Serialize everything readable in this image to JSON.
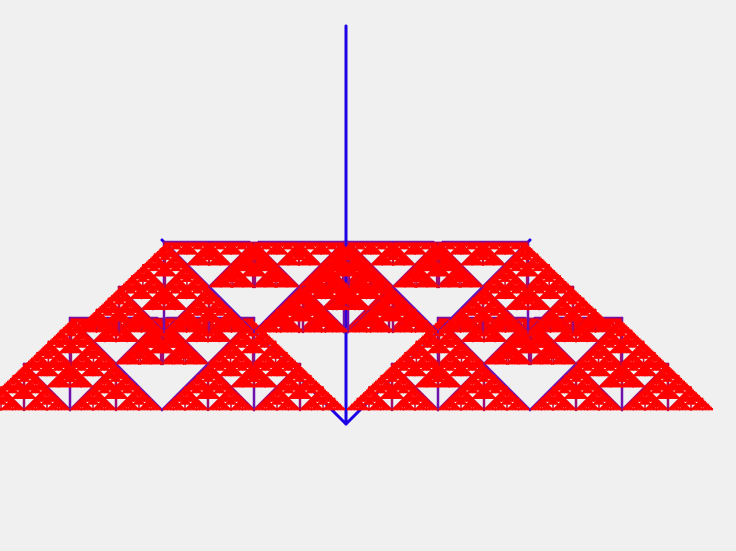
{
  "colors": {
    "background": "#f0f0f0",
    "trunk": "#1c00e6",
    "level1": "#6c10b0",
    "level2": "#a00c70",
    "level3": "#d00828",
    "leaf": "#ff0000"
  },
  "fractal": {
    "recursion_depth": 8
  }
}
